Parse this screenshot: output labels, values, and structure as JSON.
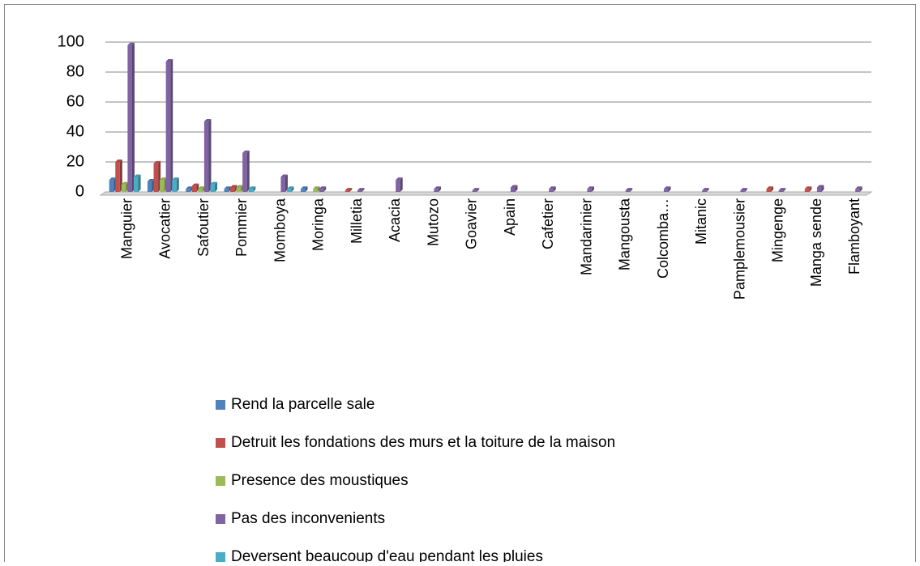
{
  "chart_data": {
    "type": "bar",
    "categories": [
      "Manguier",
      "Avocatier",
      "Safoutier",
      "Pommier",
      "Momboya",
      "Moringa",
      "Milletia",
      "Acacia",
      "Mutozo",
      "Goavier",
      "Apain",
      "Cafetier",
      "Mandarinier",
      "Mangousta",
      "Colcomba…",
      "Mitanic",
      "Pamplemousier",
      "Mingenge",
      "Manga sende",
      "Flamboyant"
    ],
    "series": [
      {
        "name": "Rend la parcelle sale",
        "color": "#4f81bd",
        "values": [
          8,
          7,
          2,
          2,
          0,
          2,
          0,
          0,
          0,
          0,
          0,
          0,
          0,
          0,
          0,
          0,
          0,
          0,
          0,
          0
        ]
      },
      {
        "name": "Detruit les fondations des murs et la toiture de la maison",
        "color": "#c0504d",
        "values": [
          20,
          19,
          4,
          3,
          0,
          0,
          1,
          0,
          0,
          0,
          0,
          0,
          0,
          0,
          0,
          0,
          0,
          2,
          2,
          0
        ]
      },
      {
        "name": "Presence des moustiques",
        "color": "#9bbb59",
        "values": [
          5,
          8,
          2,
          3,
          0,
          2,
          0,
          0,
          0,
          0,
          0,
          0,
          0,
          0,
          0,
          0,
          0,
          0,
          0,
          0
        ]
      },
      {
        "name": "Pas des inconvenients",
        "color": "#8064a2",
        "values": [
          98,
          87,
          47,
          26,
          10,
          2,
          1,
          8,
          2,
          1,
          3,
          2,
          2,
          1,
          2,
          1,
          1,
          1,
          3,
          2
        ]
      },
      {
        "name": "Deversent beaucoup d'eau pendant les pluies",
        "color": "#4bacc6",
        "values": [
          10,
          8,
          5,
          2,
          2,
          0,
          0,
          0,
          0,
          0,
          0,
          0,
          0,
          0,
          0,
          0,
          0,
          0,
          0,
          0
        ]
      }
    ],
    "ylim": [
      0,
      100
    ],
    "yticks": [
      0,
      20,
      40,
      60,
      80,
      100
    ],
    "grid": true
  }
}
